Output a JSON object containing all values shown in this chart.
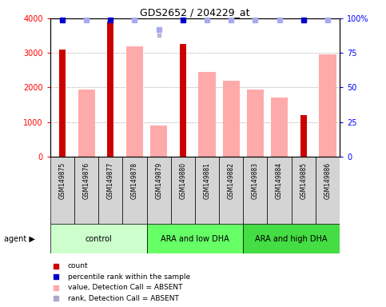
{
  "title": "GDS2652 / 204229_at",
  "samples": [
    "GSM149875",
    "GSM149876",
    "GSM149877",
    "GSM149878",
    "GSM149879",
    "GSM149880",
    "GSM149881",
    "GSM149882",
    "GSM149883",
    "GSM149884",
    "GSM149885",
    "GSM149886"
  ],
  "count_values": [
    3100,
    null,
    3900,
    null,
    null,
    3250,
    null,
    null,
    null,
    null,
    1200,
    null
  ],
  "absent_values": [
    null,
    1950,
    null,
    3200,
    900,
    null,
    2450,
    2200,
    1950,
    1700,
    null,
    2950
  ],
  "percentile_present": [
    99,
    null,
    99,
    null,
    null,
    99,
    null,
    null,
    null,
    null,
    99,
    null
  ],
  "percentile_absent": [
    null,
    99,
    null,
    99,
    92,
    null,
    99,
    99,
    99,
    99,
    null,
    99
  ],
  "rank_absent": [
    99,
    99,
    99,
    99,
    88,
    99,
    99,
    99,
    99,
    99,
    99,
    99
  ],
  "groups": [
    {
      "label": "control",
      "start": 0,
      "end": 3,
      "color": "#ccffcc"
    },
    {
      "label": "ARA and low DHA",
      "start": 4,
      "end": 7,
      "color": "#66ff66"
    },
    {
      "label": "ARA and high DHA",
      "start": 8,
      "end": 11,
      "color": "#44dd44"
    }
  ],
  "ylim_left": [
    0,
    4000
  ],
  "ylim_right": [
    0,
    100
  ],
  "count_color": "#cc0000",
  "absent_bar_color": "#ffaaaa",
  "present_dot_color": "#0000cc",
  "absent_dot_color": "#aaaaee",
  "absent_rank_color": "#aaaacc",
  "grid_color": "#888888"
}
